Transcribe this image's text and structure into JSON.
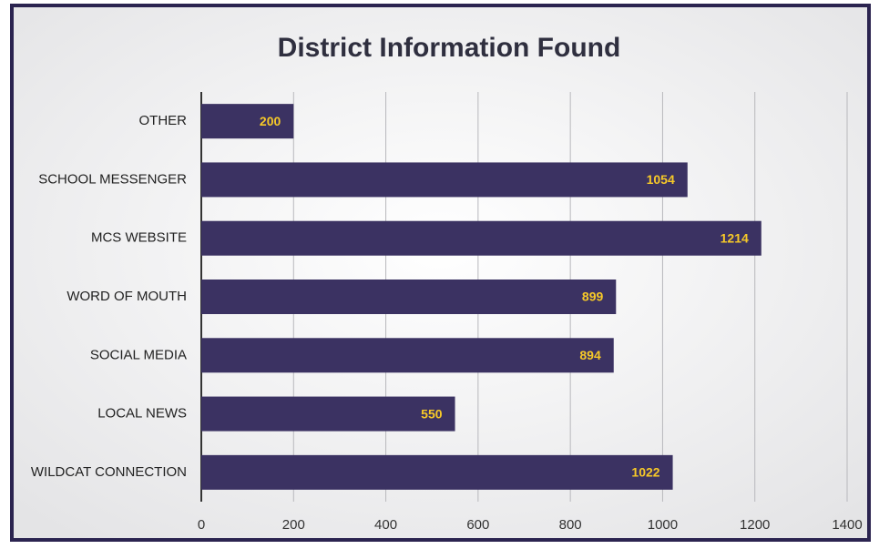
{
  "chart_data": {
    "type": "bar",
    "orientation": "horizontal",
    "title": "District Information Found",
    "categories": [
      "OTHER",
      "SCHOOL MESSENGER",
      "MCS WEBSITE",
      "WORD OF MOUTH",
      "SOCIAL MEDIA",
      "LOCAL NEWS",
      "WILDCAT CONNECTION"
    ],
    "values": [
      200,
      1054,
      1214,
      899,
      894,
      550,
      1022
    ],
    "color": "#3b3262",
    "label_color": "#f7c928",
    "xlim": [
      0,
      1400
    ],
    "xticks": [
      0,
      200,
      400,
      600,
      800,
      1000,
      1200,
      1400
    ],
    "grid": true
  }
}
